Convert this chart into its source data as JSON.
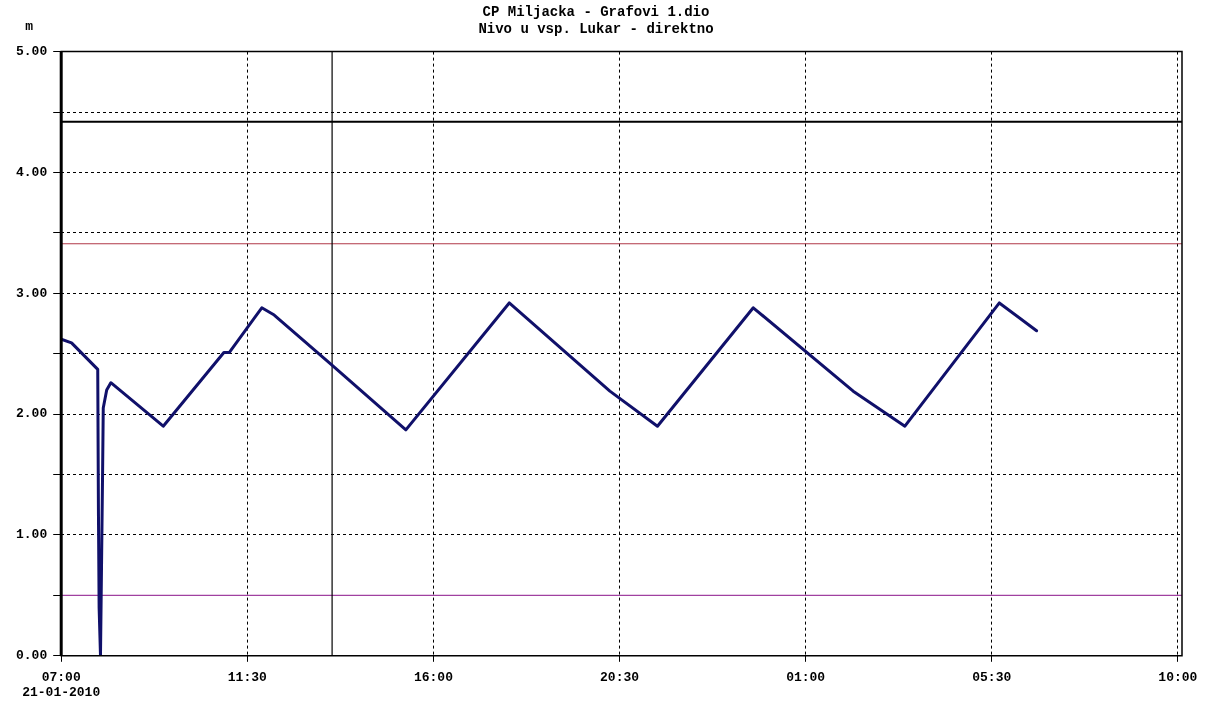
{
  "chart_data": {
    "type": "line",
    "title": "CP Miljacka - Grafovi 1.dio",
    "subtitle": "Nivo u vsp. Lukar - direktno",
    "ylabel": "m",
    "x": [
      "2010-01-21T07:00",
      "2010-01-21T07:15",
      "2010-01-21T07:53",
      "2010-01-21T07:54",
      "2010-01-21T07:55",
      "2010-01-21T07:57",
      "2010-01-21T07:58",
      "2010-01-21T08:00",
      "2010-01-21T08:01",
      "2010-01-21T08:06",
      "2010-01-21T08:12",
      "2010-01-21T09:28",
      "2010-01-21T10:56",
      "2010-01-21T11:04",
      "2010-01-21T11:51",
      "2010-01-21T12:09",
      "2010-01-21T13:32",
      "2010-01-21T15:20",
      "2010-01-21T17:50",
      "2010-01-21T20:16",
      "2010-01-21T21:25",
      "2010-01-21T23:44",
      "2010-01-22T02:09",
      "2010-01-22T03:24",
      "2010-01-22T05:41",
      "2010-01-22T06:35"
    ],
    "series": [
      {
        "color": "#10106a",
        "values": [
          2.62,
          2.59,
          2.37,
          1.2,
          0.4,
          0.0,
          0.5,
          1.5,
          2.05,
          2.2,
          2.26,
          1.9,
          2.51,
          2.51,
          2.88,
          2.82,
          2.41,
          1.87,
          2.92,
          2.19,
          1.9,
          2.88,
          2.19,
          1.9,
          2.92,
          2.69
        ]
      }
    ],
    "xlim": [
      "2010-01-21T07:00",
      "2010-01-22T10:06"
    ],
    "xticks": [
      {
        "value": "2010-01-21T07:00",
        "label": "07:00\n21-01-2010"
      },
      {
        "value": "2010-01-21T11:30",
        "label": "11:30"
      },
      {
        "value": "2010-01-21T16:00",
        "label": "16:00"
      },
      {
        "value": "2010-01-21T20:30",
        "label": "20:30"
      },
      {
        "value": "2010-01-22T01:00",
        "label": "01:00"
      },
      {
        "value": "2010-01-22T05:30",
        "label": "05:30"
      },
      {
        "value": "2010-01-22T10:00",
        "label": "10:00"
      }
    ],
    "ylim": [
      0,
      5
    ],
    "yticks": [
      {
        "value": 0,
        "label": "0.00"
      },
      {
        "value": 0.5,
        "label": null
      },
      {
        "value": 1,
        "label": "1.00"
      },
      {
        "value": 1.5,
        "label": null
      },
      {
        "value": 2,
        "label": "2.00"
      },
      {
        "value": 2.5,
        "label": null
      },
      {
        "value": 3,
        "label": "3.00"
      },
      {
        "value": 3.5,
        "label": null
      },
      {
        "value": 4,
        "label": "4.00"
      },
      {
        "value": 4.5,
        "label": null
      },
      {
        "value": 5,
        "label": "5.00"
      }
    ],
    "ref_lines": [
      {
        "axis": "y",
        "value": 4.42,
        "color": "#000000"
      },
      {
        "axis": "y",
        "value": 3.41,
        "color": "#b03848"
      },
      {
        "axis": "y",
        "value": 0.5,
        "color": "#a040a0"
      },
      {
        "axis": "x",
        "value": "2010-01-21T13:33",
        "color": "#000000"
      }
    ],
    "grid": true,
    "legend": false,
    "marker": "none",
    "line_style": "solid"
  }
}
